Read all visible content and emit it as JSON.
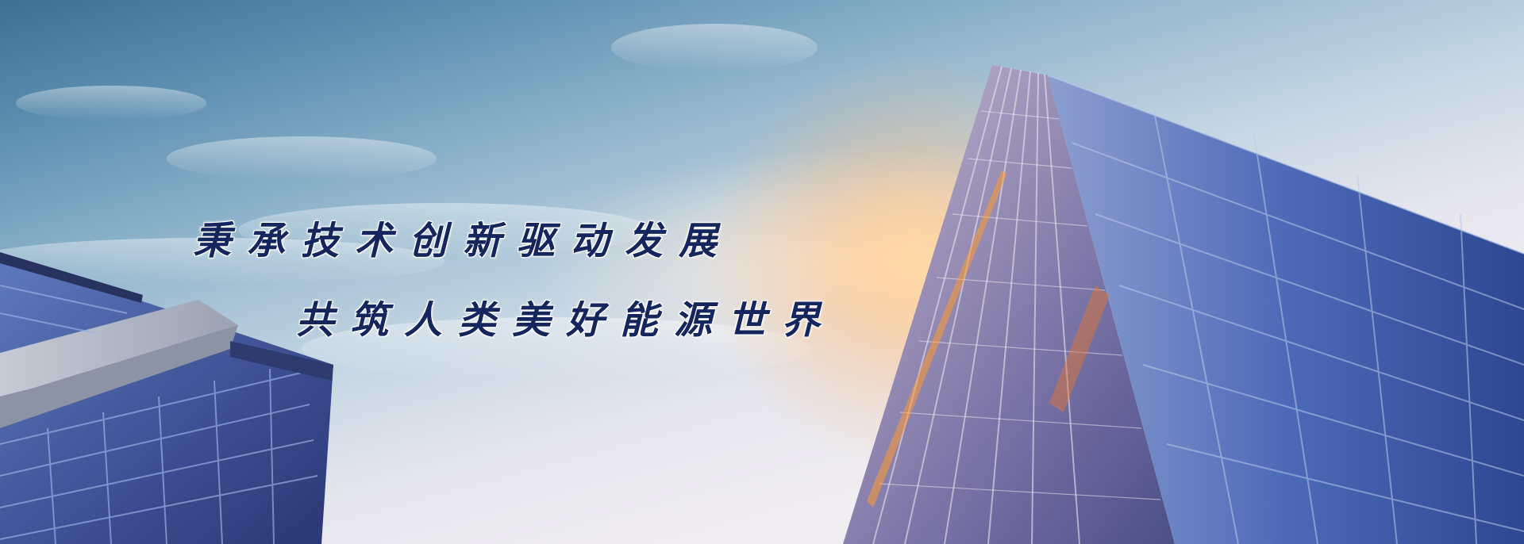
{
  "banner": {
    "slogan_line_1": "秉承技术创新驱动发展",
    "slogan_line_2": "共筑人类美好能源世界"
  },
  "colors": {
    "sky_top": "#3f6f92",
    "sky_mid": "#c5d6e3",
    "haze": "#f1eef1",
    "slogan_text": "#15255e",
    "glass_blue": "#4f6fb8",
    "sun_flare": "#ff9a30"
  }
}
